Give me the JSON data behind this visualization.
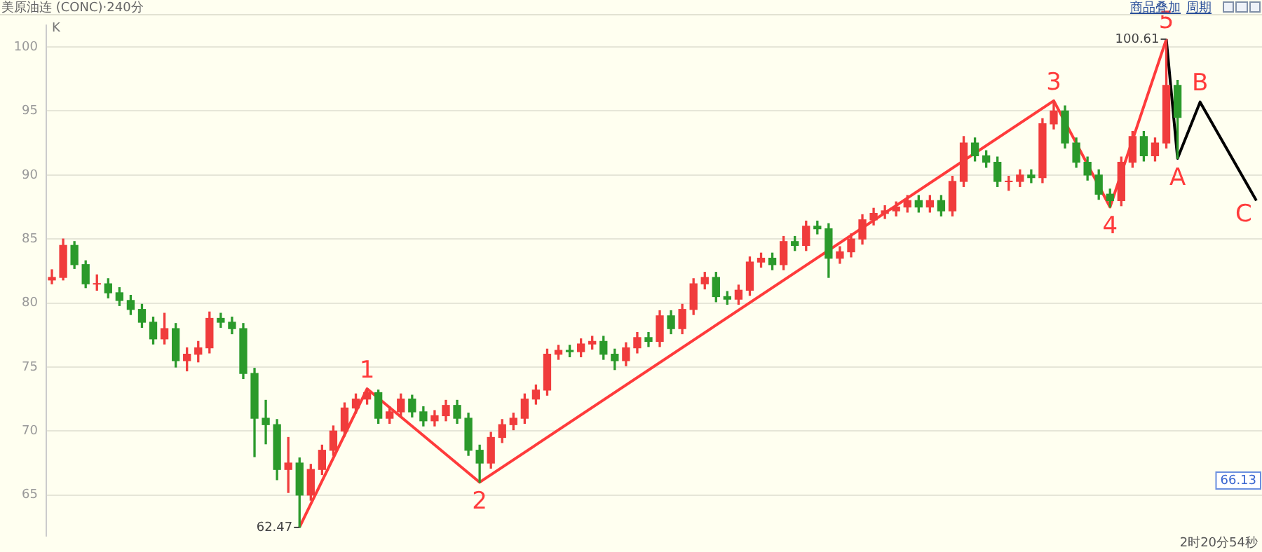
{
  "chart_data": {
    "type": "candlestick",
    "title": "美原油连 (CONC)·240分",
    "categories": [
      null,
      null,
      null,
      null,
      null,
      null,
      null,
      null,
      null,
      null,
      null,
      null,
      null,
      null,
      null,
      null,
      null,
      null,
      null,
      null,
      null,
      null,
      null,
      null,
      null,
      null,
      null,
      null,
      null,
      null,
      null,
      null,
      null,
      null,
      null,
      null,
      null,
      null,
      null,
      null,
      null,
      null,
      null,
      null,
      null,
      null,
      null,
      null,
      null,
      null,
      null,
      null,
      null,
      null,
      null,
      null,
      null,
      null,
      null,
      null,
      null,
      null,
      null,
      null,
      null,
      null,
      null,
      null,
      null,
      null,
      null,
      null,
      null,
      null,
      null,
      null,
      null,
      null,
      null,
      null,
      null,
      null,
      null,
      null,
      null,
      null,
      null,
      null,
      null,
      null,
      null,
      null,
      null,
      null,
      null,
      null,
      null,
      null,
      null,
      null,
      null,
      null,
      null,
      null,
      null,
      null,
      null,
      null
    ],
    "ohlc": [
      [
        81.8,
        82.6,
        81.5,
        82.0
      ],
      [
        82.0,
        85.0,
        81.8,
        84.5
      ],
      [
        84.5,
        84.8,
        82.7,
        83.0
      ],
      [
        83.0,
        83.3,
        81.2,
        81.5
      ],
      [
        81.5,
        82.2,
        81.0,
        81.5
      ],
      [
        81.5,
        81.9,
        80.4,
        80.8
      ],
      [
        80.8,
        81.2,
        79.8,
        80.2
      ],
      [
        80.2,
        80.6,
        79.1,
        79.5
      ],
      [
        79.5,
        79.9,
        78.1,
        78.5
      ],
      [
        78.5,
        78.9,
        76.8,
        77.2
      ],
      [
        77.2,
        79.2,
        76.8,
        78.0
      ],
      [
        78.0,
        78.4,
        75.0,
        75.5
      ],
      [
        75.5,
        76.5,
        74.7,
        76.0
      ],
      [
        76.0,
        77.0,
        75.4,
        76.5
      ],
      [
        76.5,
        79.3,
        76.1,
        78.8
      ],
      [
        78.8,
        79.2,
        78.1,
        78.5
      ],
      [
        78.5,
        78.9,
        77.6,
        78.0
      ],
      [
        78.0,
        78.4,
        74.1,
        74.5
      ],
      [
        74.5,
        74.9,
        68.0,
        71.0
      ],
      [
        71.0,
        72.4,
        69.0,
        70.5
      ],
      [
        70.5,
        70.9,
        66.2,
        67.0
      ],
      [
        67.0,
        69.5,
        65.2,
        67.5
      ],
      [
        67.5,
        67.9,
        62.47,
        65.0
      ],
      [
        65.0,
        67.4,
        64.6,
        67.0
      ],
      [
        67.0,
        68.9,
        66.6,
        68.5
      ],
      [
        68.5,
        70.4,
        68.1,
        70.0
      ],
      [
        70.0,
        72.2,
        69.6,
        71.8
      ],
      [
        71.8,
        72.9,
        71.4,
        72.5
      ],
      [
        72.5,
        73.3,
        72.1,
        73.0
      ],
      [
        73.0,
        73.2,
        70.6,
        71.0
      ],
      [
        71.0,
        71.9,
        70.6,
        71.5
      ],
      [
        71.5,
        72.9,
        71.1,
        72.5
      ],
      [
        72.5,
        72.8,
        71.1,
        71.5
      ],
      [
        71.5,
        71.9,
        70.4,
        70.8
      ],
      [
        70.8,
        71.6,
        70.4,
        71.2
      ],
      [
        71.2,
        72.4,
        70.8,
        72.0
      ],
      [
        72.0,
        72.4,
        70.6,
        71.0
      ],
      [
        71.0,
        71.4,
        68.1,
        68.5
      ],
      [
        68.5,
        68.9,
        66.0,
        67.5
      ],
      [
        67.5,
        69.9,
        67.1,
        69.5
      ],
      [
        69.5,
        70.9,
        69.1,
        70.5
      ],
      [
        70.5,
        71.4,
        70.1,
        71.0
      ],
      [
        71.0,
        72.9,
        70.6,
        72.5
      ],
      [
        72.5,
        73.6,
        72.1,
        73.2
      ],
      [
        73.2,
        76.4,
        72.8,
        76.0
      ],
      [
        76.0,
        76.7,
        75.6,
        76.3
      ],
      [
        76.3,
        76.7,
        75.8,
        76.2
      ],
      [
        76.2,
        77.2,
        75.8,
        76.8
      ],
      [
        76.8,
        77.4,
        76.4,
        77.0
      ],
      [
        77.0,
        77.4,
        75.6,
        76.0
      ],
      [
        76.0,
        76.4,
        74.8,
        75.5
      ],
      [
        75.5,
        76.9,
        75.1,
        76.5
      ],
      [
        76.5,
        77.7,
        76.1,
        77.3
      ],
      [
        77.3,
        77.7,
        76.6,
        77.0
      ],
      [
        77.0,
        79.4,
        76.6,
        79.0
      ],
      [
        79.0,
        79.4,
        77.6,
        78.0
      ],
      [
        78.0,
        79.9,
        77.6,
        79.5
      ],
      [
        79.5,
        81.9,
        79.1,
        81.5
      ],
      [
        81.5,
        82.4,
        81.1,
        82.0
      ],
      [
        82.0,
        82.4,
        80.1,
        80.5
      ],
      [
        80.5,
        80.9,
        79.9,
        80.3
      ],
      [
        80.3,
        81.4,
        79.9,
        81.0
      ],
      [
        81.0,
        83.6,
        80.6,
        83.2
      ],
      [
        83.2,
        83.9,
        82.8,
        83.5
      ],
      [
        83.5,
        83.9,
        82.6,
        83.0
      ],
      [
        83.0,
        85.2,
        82.6,
        84.8
      ],
      [
        84.8,
        85.2,
        84.1,
        84.5
      ],
      [
        84.5,
        86.4,
        84.1,
        86.0
      ],
      [
        86.0,
        86.4,
        85.4,
        85.8
      ],
      [
        85.8,
        86.2,
        82.0,
        83.5
      ],
      [
        83.5,
        84.4,
        83.1,
        84.0
      ],
      [
        84.0,
        85.4,
        83.6,
        85.0
      ],
      [
        85.0,
        86.9,
        84.6,
        86.5
      ],
      [
        86.5,
        87.4,
        86.1,
        87.0
      ],
      [
        87.0,
        87.6,
        86.6,
        87.2
      ],
      [
        87.2,
        87.9,
        86.8,
        87.5
      ],
      [
        87.5,
        88.4,
        87.1,
        88.0
      ],
      [
        88.0,
        88.4,
        87.1,
        87.5
      ],
      [
        87.5,
        88.4,
        87.1,
        88.0
      ],
      [
        88.0,
        88.4,
        86.8,
        87.2
      ],
      [
        87.2,
        89.9,
        86.8,
        89.5
      ],
      [
        89.5,
        93.0,
        89.1,
        92.5
      ],
      [
        92.5,
        92.9,
        91.1,
        91.5
      ],
      [
        91.5,
        91.9,
        90.6,
        91.0
      ],
      [
        91.0,
        91.4,
        89.1,
        89.5
      ],
      [
        89.5,
        89.9,
        88.8,
        89.5
      ],
      [
        89.5,
        90.4,
        89.1,
        90.0
      ],
      [
        90.0,
        90.4,
        89.4,
        89.8
      ],
      [
        89.8,
        94.4,
        89.4,
        94.0
      ],
      [
        94.0,
        95.8,
        93.6,
        95.0
      ],
      [
        95.0,
        95.4,
        92.1,
        92.5
      ],
      [
        92.5,
        92.9,
        90.6,
        91.0
      ],
      [
        91.0,
        91.4,
        89.6,
        90.0
      ],
      [
        90.0,
        90.4,
        88.1,
        88.5
      ],
      [
        88.5,
        88.9,
        87.5,
        88.0
      ],
      [
        88.0,
        91.4,
        87.6,
        91.0
      ],
      [
        91.0,
        93.4,
        90.6,
        93.0
      ],
      [
        93.0,
        93.4,
        91.1,
        91.5
      ],
      [
        91.5,
        92.9,
        91.1,
        92.5
      ],
      [
        92.5,
        100.61,
        92.1,
        97.0
      ],
      [
        97.0,
        97.4,
        91.3,
        94.5
      ],
      null,
      null,
      null,
      null,
      null,
      null,
      null
    ],
    "series": [
      {
        "type": "line",
        "color": "#ff3b3b",
        "values": [
          null,
          null,
          null,
          null,
          null,
          null,
          null,
          null,
          null,
          null,
          null,
          null,
          null,
          null,
          null,
          null,
          null,
          null,
          null,
          null,
          null,
          null,
          62.5,
          null,
          null,
          null,
          null,
          null,
          73.3,
          null,
          null,
          null,
          null,
          null,
          null,
          null,
          null,
          null,
          66.0,
          null,
          null,
          null,
          null,
          null,
          null,
          null,
          null,
          null,
          null,
          null,
          null,
          null,
          null,
          null,
          null,
          null,
          null,
          null,
          null,
          null,
          null,
          null,
          null,
          null,
          null,
          null,
          null,
          null,
          null,
          null,
          null,
          null,
          null,
          null,
          null,
          null,
          null,
          null,
          null,
          null,
          null,
          null,
          null,
          null,
          null,
          null,
          null,
          null,
          null,
          95.8,
          null,
          null,
          null,
          null,
          87.5,
          null,
          null,
          null,
          null,
          100.6,
          null,
          null,
          null,
          null,
          null,
          null,
          null,
          null
        ]
      },
      {
        "type": "line",
        "color": "#000000",
        "values": [
          null,
          null,
          null,
          null,
          null,
          null,
          null,
          null,
          null,
          null,
          null,
          null,
          null,
          null,
          null,
          null,
          null,
          null,
          null,
          null,
          null,
          null,
          null,
          null,
          null,
          null,
          null,
          null,
          null,
          null,
          null,
          null,
          null,
          null,
          null,
          null,
          null,
          null,
          null,
          null,
          null,
          null,
          null,
          null,
          null,
          null,
          null,
          null,
          null,
          null,
          null,
          null,
          null,
          null,
          null,
          null,
          null,
          null,
          null,
          null,
          null,
          null,
          null,
          null,
          null,
          null,
          null,
          null,
          null,
          null,
          null,
          null,
          null,
          null,
          null,
          null,
          null,
          null,
          null,
          null,
          null,
          null,
          null,
          null,
          null,
          null,
          null,
          null,
          null,
          null,
          null,
          null,
          null,
          null,
          null,
          null,
          null,
          null,
          null,
          100.6,
          91.3,
          null,
          95.7,
          null,
          null,
          null,
          null,
          88.0
        ]
      }
    ],
    "ylim": [
      61.8,
      101.7
    ],
    "yticks": [
      65,
      70,
      75,
      80,
      85,
      90,
      95,
      100
    ],
    "grid": "y",
    "tick_labels": "y",
    "legend": false,
    "annotations": [
      "K",
      "62.47",
      "100.61",
      {
        "text": "66.13",
        "y": 66.13
      },
      "商品叠加",
      "周期",
      "2时20分54秒",
      {
        "text": "1",
        "y": 73.3
      },
      {
        "text": "2",
        "y": 66.0
      },
      {
        "text": "3",
        "y": 95.8
      },
      {
        "text": "4",
        "y": 87.5
      },
      {
        "text": "5",
        "y": 100.6
      },
      {
        "text": "A",
        "y": 91.3
      },
      {
        "text": "B",
        "y": 95.7
      },
      "C"
    ]
  }
}
